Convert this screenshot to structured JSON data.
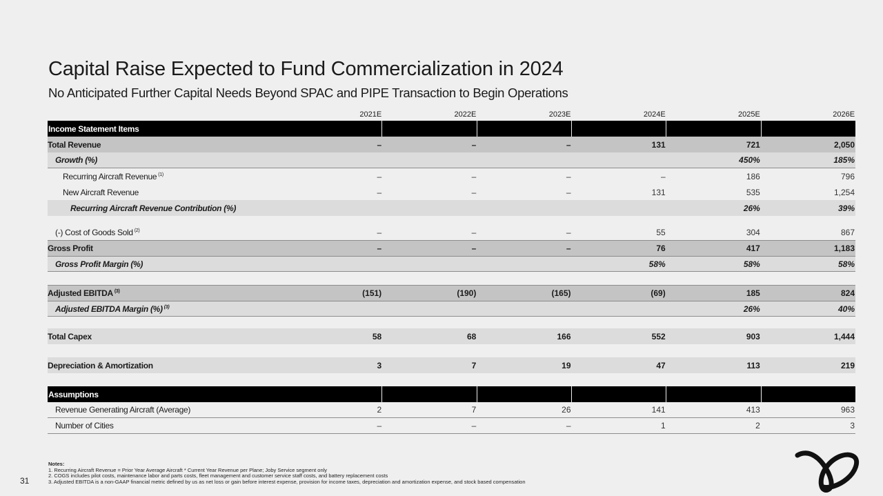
{
  "title": "Capital Raise Expected to Fund Commercialization in 2024",
  "subtitle": "No Anticipated Further Capital Needs Beyond SPAC and PIPE Transaction to Begin Operations",
  "columns": [
    "2021E",
    "2022E",
    "2023E",
    "2024E",
    "2025E",
    "2026E"
  ],
  "sections": {
    "income": "Income Statement Items",
    "assumptions": "Assumptions"
  },
  "rows": {
    "total_revenue": {
      "label": "Total Revenue",
      "values": [
        "–",
        "–",
        "–",
        "131",
        "721",
        "2,050"
      ]
    },
    "growth": {
      "label": "Growth (%)",
      "values": [
        "",
        "",
        "",
        "",
        "450%",
        "185%"
      ]
    },
    "recurring_rev": {
      "label": "Recurring Aircraft Revenue",
      "sup": "(1)",
      "values": [
        "–",
        "–",
        "–",
        "–",
        "186",
        "796"
      ]
    },
    "new_rev": {
      "label": "New Aircraft Revenue",
      "values": [
        "–",
        "–",
        "–",
        "131",
        "535",
        "1,254"
      ]
    },
    "recurring_contrib": {
      "label": "Recurring Aircraft Revenue Contribution (%)",
      "values": [
        "",
        "",
        "",
        "",
        "26%",
        "39%"
      ]
    },
    "cogs": {
      "label": "(-) Cost of Goods Sold",
      "sup": "(2)",
      "values": [
        "–",
        "–",
        "–",
        "55",
        "304",
        "867"
      ]
    },
    "gross_profit": {
      "label": "Gross Profit",
      "values": [
        "–",
        "–",
        "–",
        "76",
        "417",
        "1,183"
      ]
    },
    "gross_margin": {
      "label": "Gross Profit Margin (%)",
      "values": [
        "",
        "",
        "",
        "58%",
        "58%",
        "58%"
      ]
    },
    "adj_ebitda": {
      "label": "Adjusted EBITDA",
      "sup": "(3)",
      "values": [
        "(151)",
        "(190)",
        "(165)",
        "(69)",
        "185",
        "824"
      ]
    },
    "adj_ebitda_margin": {
      "label": "Adjusted EBITDA Margin (%)",
      "sup": "(3)",
      "values": [
        "",
        "",
        "",
        "",
        "26%",
        "40%"
      ]
    },
    "capex": {
      "label": "Total Capex",
      "values": [
        "58",
        "68",
        "166",
        "552",
        "903",
        "1,444"
      ]
    },
    "da": {
      "label": "Depreciation & Amortization",
      "values": [
        "3",
        "7",
        "19",
        "47",
        "113",
        "219"
      ]
    },
    "aircraft": {
      "label": "Revenue Generating Aircraft (Average)",
      "values": [
        "2",
        "7",
        "26",
        "141",
        "413",
        "963"
      ]
    },
    "cities": {
      "label": "Number of Cities",
      "values": [
        "–",
        "–",
        "–",
        "1",
        "2",
        "3"
      ]
    }
  },
  "notes": {
    "title": "Notes:",
    "items": [
      "1.  Recurring Aircraft Revenue = Prior Year Average Aircraft * Current Year Revenue per Plane; Joby Service segment only",
      "2.  COGS includes pilot costs, maintenance labor and parts costs, fleet management and customer service staff costs, and battery replacement costs",
      "3.  Adjusted EBITDA is a non-GAAP financial metric defined by us as net loss or gain before interest expense, provision for income taxes, depreciation and amortization expense, and stock based compensation"
    ]
  },
  "page_number": "31",
  "logo_icon": "joby-logo-icon",
  "colors": {
    "background": "#efefef",
    "section_header": "#000000",
    "dark_band": "#c4c4c4",
    "light_band": "#dcdcdc"
  }
}
